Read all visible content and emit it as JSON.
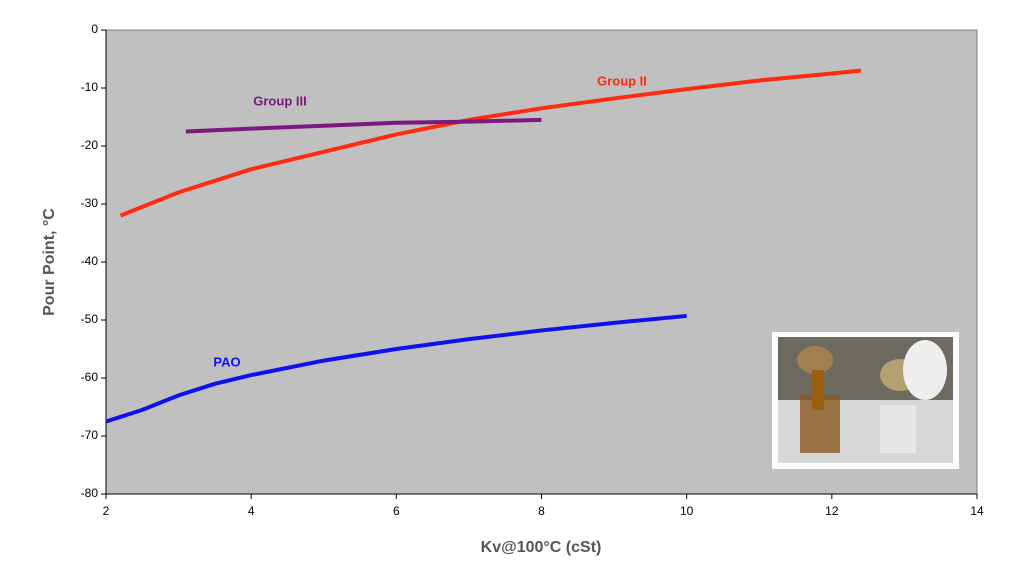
{
  "chart_data": {
    "type": "line",
    "x_label": "Kv@100°C (cSt)",
    "y_label": "Pour Point, °C",
    "xlim": [
      2,
      14
    ],
    "xticks": [
      2,
      4,
      6,
      8,
      10,
      12,
      14
    ],
    "ylim": [
      -80,
      0
    ],
    "yticks": [
      0,
      -10,
      -20,
      -30,
      -40,
      -50,
      -60,
      -70,
      -80
    ],
    "grid": false,
    "series": [
      {
        "name": "Group II",
        "color": "#ff2a12",
        "x": [
          2.2,
          2.5,
          3,
          3.5,
          4,
          5,
          6,
          7,
          8,
          9,
          10,
          11,
          12,
          12.4
        ],
        "values": [
          -32,
          -30.5,
          -28,
          -26,
          -24,
          -21,
          -18,
          -15.5,
          -13.5,
          -11.8,
          -10.2,
          -8.7,
          -7.5,
          -7
        ]
      },
      {
        "name": "Group III",
        "color": "#7a1a80",
        "x": [
          3.1,
          4,
          5,
          6,
          7,
          8
        ],
        "values": [
          -17.5,
          -17,
          -16.5,
          -16,
          -15.8,
          -15.5
        ]
      },
      {
        "name": "PAO",
        "color": "#1010ee",
        "x": [
          2,
          2.5,
          3,
          3.5,
          4,
          5,
          6,
          7,
          8,
          9,
          10
        ],
        "values": [
          -67.5,
          -65.5,
          -63,
          -61,
          -59.5,
          -57,
          -55,
          -53.3,
          -51.8,
          -50.5,
          -49.3
        ]
      }
    ]
  }
}
